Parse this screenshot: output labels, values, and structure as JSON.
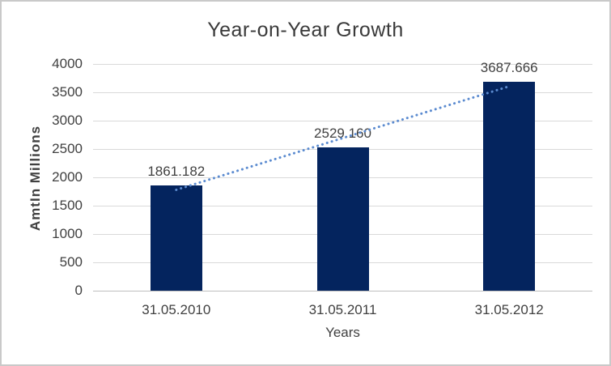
{
  "window": {
    "background": "#ffffff",
    "border_color": "#c9c9c9"
  },
  "colors": {
    "bar": "#04245e",
    "trendline": "#5b8bd0",
    "gridline": "#d9d9d9",
    "axis_line": "#bfbfbf",
    "text": "#404040",
    "title": "#3a3a3a"
  },
  "chart_data": {
    "type": "bar",
    "title": "Year-on-Year Growth",
    "categories": [
      "31.05.2010",
      "31.05.2011",
      "31.05.2012"
    ],
    "values": [
      1861.182,
      2529.16,
      3687.666
    ],
    "value_labels": [
      "1861.182",
      "2529.160",
      "3687.666"
    ],
    "xlabel": "Years",
    "ylabel": "AmtIn Millions",
    "ylim": [
      0,
      4000
    ],
    "yticks": [
      0,
      500,
      1000,
      1500,
      2000,
      2500,
      3000,
      3500,
      4000
    ],
    "grid": true,
    "legend": "none",
    "trendline": {
      "type": "linear",
      "style": "dotted"
    }
  }
}
